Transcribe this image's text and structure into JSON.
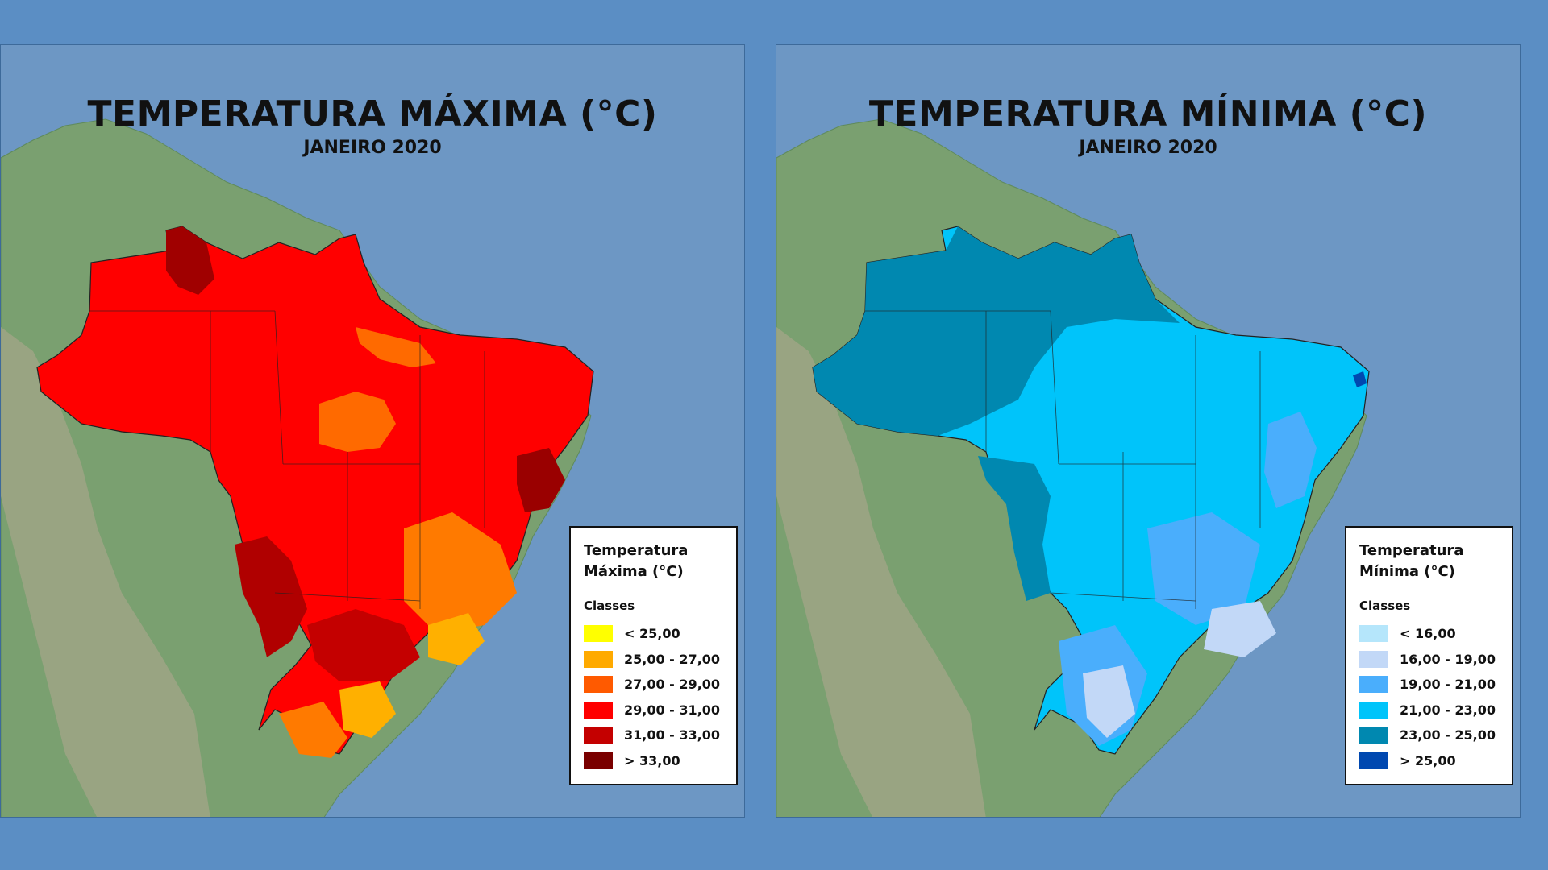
{
  "panels": {
    "max": {
      "title": "TEMPERATURA MÁXIMA (°C)",
      "subtitle": "JANEIRO 2020",
      "legend_title": "Temperatura\nMáxima (°C)",
      "legend_classes": "Classes",
      "classes": [
        {
          "label": "< 25,00",
          "color": "#ffff00"
        },
        {
          "label": "25,00 - 27,00",
          "color": "#ffaa00"
        },
        {
          "label": "27,00 - 29,00",
          "color": "#ff5a00"
        },
        {
          "label": "29,00 - 31,00",
          "color": "#ff0000"
        },
        {
          "label": "31,00 - 33,00",
          "color": "#c40000"
        },
        {
          "label": "> 33,00",
          "color": "#7a0000"
        }
      ]
    },
    "min": {
      "title": "TEMPERATURA MÍNIMA (°C)",
      "subtitle": "JANEIRO 2020",
      "legend_title": "Temperatura\nMínima (°C)",
      "legend_classes": "Classes",
      "classes": [
        {
          "label": "< 16,00",
          "color": "#b5e6fb"
        },
        {
          "label": "16,00 - 19,00",
          "color": "#c2d8f7"
        },
        {
          "label": "19,00 - 21,00",
          "color": "#4aaefc"
        },
        {
          "label": "21,00 - 23,00",
          "color": "#00c4fa"
        },
        {
          "label": "23,00 - 25,00",
          "color": "#0088b0"
        },
        {
          "label": "> 25,00",
          "color": "#0048b0"
        }
      ]
    }
  },
  "colors": {
    "background": "#5b8ec4",
    "ocean": "#6d97c4",
    "land": "#7aa070"
  }
}
